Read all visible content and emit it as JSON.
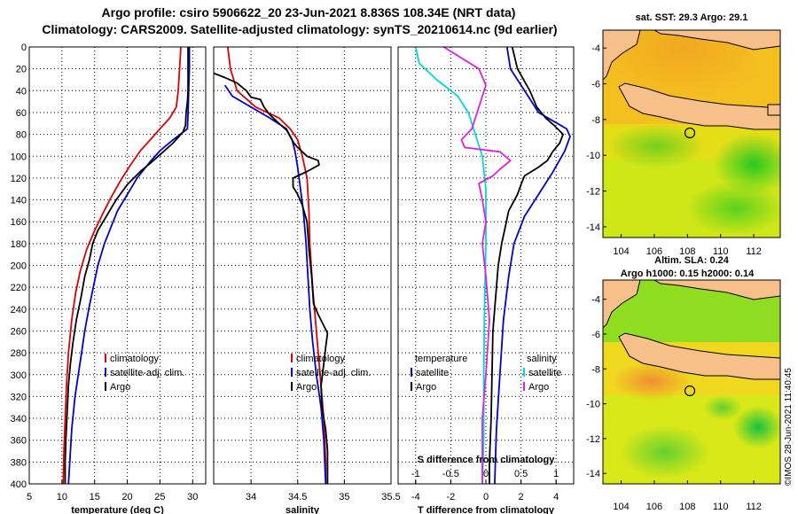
{
  "header": {
    "line1": "Argo profile: csiro 5906622_20 23-Jun-2021 8.836S 108.34E (NRT data)",
    "line2": "Climatology: CARS2009. Satellite-adjusted climatology: synTS_20210614.nc (9d earlier)"
  },
  "credit": "©IMOS 28-Jun-2021 11:40:45",
  "colors": {
    "climatology": "#e00000",
    "satellite": "#0000d0",
    "argo": "#000000",
    "sal_satellite": "#00d8e0",
    "sal_argo": "#e020e0"
  },
  "chart_data": [
    {
      "type": "line",
      "name": "temperature",
      "xlabel": "temperature (deg C)",
      "xlim": [
        5,
        32
      ],
      "ylim": [
        400,
        0
      ],
      "xticks": [
        5,
        10,
        15,
        20,
        25,
        30
      ],
      "yticks": [
        0,
        20,
        40,
        60,
        80,
        100,
        120,
        140,
        160,
        180,
        200,
        220,
        240,
        260,
        280,
        300,
        320,
        340,
        360,
        380,
        400
      ],
      "grid": true,
      "legend": [
        "climatology",
        "satellite-adj. clim.",
        "Argo"
      ],
      "series": [
        {
          "name": "climatology",
          "color": "#e00000",
          "points": [
            [
              28.2,
              0
            ],
            [
              28.0,
              20
            ],
            [
              27.8,
              40
            ],
            [
              27.5,
              55
            ],
            [
              26.5,
              65
            ],
            [
              25,
              75
            ],
            [
              23.5,
              85
            ],
            [
              22,
              95
            ],
            [
              20.5,
              108
            ],
            [
              19,
              122
            ],
            [
              17.5,
              138
            ],
            [
              16.3,
              152
            ],
            [
              15,
              168
            ],
            [
              13.8,
              185
            ],
            [
              12.8,
              205
            ],
            [
              12.1,
              225
            ],
            [
              11.5,
              250
            ],
            [
              11,
              280
            ],
            [
              10.7,
              310
            ],
            [
              10.5,
              340
            ],
            [
              10.3,
              370
            ],
            [
              10.2,
              400
            ]
          ]
        },
        {
          "name": "satellite-adj. clim.",
          "color": "#0000d0",
          "points": [
            [
              29.5,
              0
            ],
            [
              29.5,
              20
            ],
            [
              29.4,
              40
            ],
            [
              29.3,
              60
            ],
            [
              29.2,
              75
            ],
            [
              27,
              85
            ],
            [
              25,
              95
            ],
            [
              23.5,
              105
            ],
            [
              21.5,
              120
            ],
            [
              20,
              135
            ],
            [
              18.5,
              150
            ],
            [
              17.5,
              165
            ],
            [
              16.5,
              180
            ],
            [
              15.5,
              200
            ],
            [
              14.8,
              220
            ],
            [
              14.1,
              240
            ],
            [
              13.5,
              260
            ],
            [
              13,
              280
            ],
            [
              12.5,
              300
            ],
            [
              12,
              320
            ],
            [
              11.5,
              350
            ],
            [
              11.2,
              380
            ],
            [
              11,
              400
            ]
          ]
        },
        {
          "name": "Argo",
          "color": "#000000",
          "points": [
            [
              29.3,
              0
            ],
            [
              29.3,
              20
            ],
            [
              29.3,
              40
            ],
            [
              29.2,
              50
            ],
            [
              29.0,
              60
            ],
            [
              28.9,
              72
            ],
            [
              28.5,
              78
            ],
            [
              27,
              88
            ],
            [
              25.5,
              96
            ],
            [
              24,
              104
            ],
            [
              22,
              114
            ],
            [
              20,
              126
            ],
            [
              18.3,
              140
            ],
            [
              16.8,
              155
            ],
            [
              15.5,
              168
            ],
            [
              14.7,
              180
            ],
            [
              14.2,
              195
            ],
            [
              13.5,
              210
            ],
            [
              12.9,
              230
            ],
            [
              12.2,
              250
            ],
            [
              11.7,
              270
            ],
            [
              11.3,
              290
            ],
            [
              11,
              310
            ],
            [
              10.8,
              335
            ],
            [
              10.6,
              360
            ],
            [
              10.5,
              380
            ],
            [
              10.5,
              400
            ]
          ]
        }
      ]
    },
    {
      "type": "line",
      "name": "salinity",
      "xlabel": "salinity",
      "xlim": [
        33.6,
        35.5
      ],
      "ylim": [
        400,
        0
      ],
      "xticks": [
        34,
        34.5,
        35,
        35.5
      ],
      "xticklabels": [
        "34",
        "34.5",
        "35",
        "35.5"
      ],
      "grid": true,
      "legend": [
        "climatology",
        "satellite-adj. clim.",
        "Argo"
      ],
      "series": [
        {
          "name": "climatology",
          "color": "#e00000",
          "points": [
            [
              33.75,
              0
            ],
            [
              33.78,
              20
            ],
            [
              33.85,
              40
            ],
            [
              34.05,
              55
            ],
            [
              34.3,
              65
            ],
            [
              34.42,
              75
            ],
            [
              34.5,
              85
            ],
            [
              34.55,
              100
            ],
            [
              34.6,
              120
            ],
            [
              34.62,
              150
            ],
            [
              34.63,
              180
            ],
            [
              34.66,
              220
            ],
            [
              34.7,
              260
            ],
            [
              34.74,
              300
            ],
            [
              34.78,
              340
            ],
            [
              34.8,
              380
            ],
            [
              34.8,
              400
            ]
          ]
        },
        {
          "name": "satellite-adj. clim.",
          "color": "#0000d0",
          "points": [
            [
              33.72,
              35
            ],
            [
              33.8,
              45
            ],
            [
              34.0,
              55
            ],
            [
              34.2,
              65
            ],
            [
              34.38,
              75
            ],
            [
              34.44,
              85
            ],
            [
              34.47,
              95
            ],
            [
              34.5,
              110
            ],
            [
              34.53,
              130
            ],
            [
              34.56,
              150
            ],
            [
              34.59,
              180
            ],
            [
              34.61,
              210
            ],
            [
              34.63,
              240
            ],
            [
              34.66,
              270
            ],
            [
              34.7,
              300
            ],
            [
              34.75,
              330
            ],
            [
              34.78,
              360
            ],
            [
              34.8,
              400
            ]
          ]
        },
        {
          "name": "Argo",
          "color": "#000000",
          "points": [
            [
              33.6,
              24
            ],
            [
              33.72,
              28
            ],
            [
              33.85,
              33
            ],
            [
              33.95,
              40
            ],
            [
              34.0,
              46
            ],
            [
              34.1,
              48
            ],
            [
              34.14,
              55
            ],
            [
              34.2,
              62
            ],
            [
              34.3,
              70
            ],
            [
              34.38,
              76
            ],
            [
              34.42,
              82
            ],
            [
              34.46,
              88
            ],
            [
              34.5,
              92
            ],
            [
              34.55,
              96
            ],
            [
              34.6,
              100
            ],
            [
              34.72,
              104
            ],
            [
              34.73,
              108
            ],
            [
              34.6,
              114
            ],
            [
              34.45,
              120
            ],
            [
              34.45,
              128
            ],
            [
              34.5,
              135
            ],
            [
              34.55,
              145
            ],
            [
              34.6,
              160
            ],
            [
              34.62,
              185
            ],
            [
              34.65,
              210
            ],
            [
              34.67,
              235
            ],
            [
              34.72,
              245
            ],
            [
              34.82,
              262
            ],
            [
              34.8,
              275
            ],
            [
              34.78,
              290
            ],
            [
              34.75,
              310
            ],
            [
              34.76,
              330
            ],
            [
              34.8,
              350
            ],
            [
              34.82,
              370
            ],
            [
              34.82,
              400
            ]
          ]
        }
      ]
    },
    {
      "type": "line",
      "name": "difference",
      "xlabel": "T difference from climatology",
      "xlim": [
        -5,
        5
      ],
      "ylim": [
        400,
        0
      ],
      "xticks": [
        -4,
        -2,
        0,
        2,
        4
      ],
      "top_axis_label": "S difference from climatology",
      "top_xlim": [
        -1.25,
        1.25
      ],
      "top_xticks": [
        -1,
        -0.5,
        0,
        0.5,
        1
      ],
      "top_xticklabels": [
        "-1",
        "-0.5",
        "0",
        "0.5",
        "1"
      ],
      "grid": true,
      "legend_headers": [
        "temperature",
        "salinity"
      ],
      "legend_temperature": [
        "satellite",
        "Argo"
      ],
      "legend_salinity": [
        "satellite",
        "Argo"
      ],
      "series": [
        {
          "name": "temperature satellite",
          "color": "#0000d0",
          "points": [
            [
              1.2,
              0
            ],
            [
              1.4,
              20
            ],
            [
              2.2,
              40
            ],
            [
              3,
              60
            ],
            [
              4.6,
              75
            ],
            [
              4.8,
              82
            ],
            [
              4.5,
              95
            ],
            [
              3.8,
              115
            ],
            [
              3,
              135
            ],
            [
              2.2,
              155
            ],
            [
              1.6,
              180
            ],
            [
              1.3,
              210
            ],
            [
              1.0,
              250
            ],
            [
              0.8,
              300
            ],
            [
              0.6,
              350
            ],
            [
              0.5,
              400
            ]
          ]
        },
        {
          "name": "temperature Argo",
          "color": "#000000",
          "points": [
            [
              1.5,
              0
            ],
            [
              1.8,
              20
            ],
            [
              2.5,
              40
            ],
            [
              2.9,
              55
            ],
            [
              3.4,
              65
            ],
            [
              3.9,
              72
            ],
            [
              4.4,
              80
            ],
            [
              4.2,
              88
            ],
            [
              3.8,
              96
            ],
            [
              3.5,
              104
            ],
            [
              3.0,
              110
            ],
            [
              2.2,
              118
            ],
            [
              2.0,
              126
            ],
            [
              1.8,
              135
            ],
            [
              1.3,
              150
            ],
            [
              1.1,
              165
            ],
            [
              0.9,
              180
            ],
            [
              0.7,
              200
            ],
            [
              0.55,
              230
            ],
            [
              0.4,
              260
            ],
            [
              0.35,
              300
            ],
            [
              0.3,
              340
            ],
            [
              0.2,
              380
            ],
            [
              0.2,
              400
            ]
          ]
        },
        {
          "name": "salinity satellite",
          "color": "#00d8e0",
          "axis": "top",
          "points": [
            [
              -1.0,
              0
            ],
            [
              -0.95,
              15
            ],
            [
              -0.7,
              30
            ],
            [
              -0.4,
              45
            ],
            [
              -0.25,
              60
            ],
            [
              -0.15,
              80
            ],
            [
              -0.05,
              100
            ],
            [
              0,
              130
            ],
            [
              0,
              180
            ],
            [
              -0.02,
              240
            ],
            [
              -0.03,
              300
            ],
            [
              -0.03,
              360
            ],
            [
              -0.05,
              400
            ]
          ]
        },
        {
          "name": "salinity Argo",
          "color": "#e020e0",
          "axis": "top",
          "points": [
            [
              -0.6,
              0
            ],
            [
              -0.1,
              20
            ],
            [
              0.0,
              35
            ],
            [
              -0.1,
              55
            ],
            [
              -0.2,
              75
            ],
            [
              -0.35,
              85
            ],
            [
              -0.3,
              92
            ],
            [
              0.2,
              96
            ],
            [
              0.35,
              104
            ],
            [
              0.2,
              112
            ],
            [
              0.1,
              118
            ],
            [
              -0.1,
              125
            ],
            [
              -0.05,
              140
            ],
            [
              0.0,
              160
            ],
            [
              -0.05,
              180
            ],
            [
              0.0,
              210
            ],
            [
              0.05,
              250
            ],
            [
              0.0,
              300
            ],
            [
              -0.05,
              340
            ],
            [
              -0.05,
              370
            ],
            [
              -0.05,
              400
            ]
          ]
        }
      ]
    }
  ],
  "maps": [
    {
      "title": "sat. SST: 29.3 Argo: 29.1",
      "lat_ticks": [
        "-4",
        "-6",
        "-8",
        "-10",
        "-12",
        "-14"
      ],
      "lon_ticks": [
        "104",
        "106",
        "108",
        "110",
        "112"
      ],
      "marker": {
        "lon": 108.34,
        "lat": -8.836
      }
    },
    {
      "title_line1": "Altim. SLA: 0.24",
      "title_line2": "Argo h1000: 0.15 h2000: 0.14",
      "lat_ticks": [
        "-4",
        "-6",
        "-8",
        "-10",
        "-12",
        "-14"
      ],
      "lon_ticks": [
        "104",
        "106",
        "108",
        "110",
        "112"
      ],
      "marker": {
        "lon": 108.34,
        "lat": -8.836
      }
    }
  ]
}
